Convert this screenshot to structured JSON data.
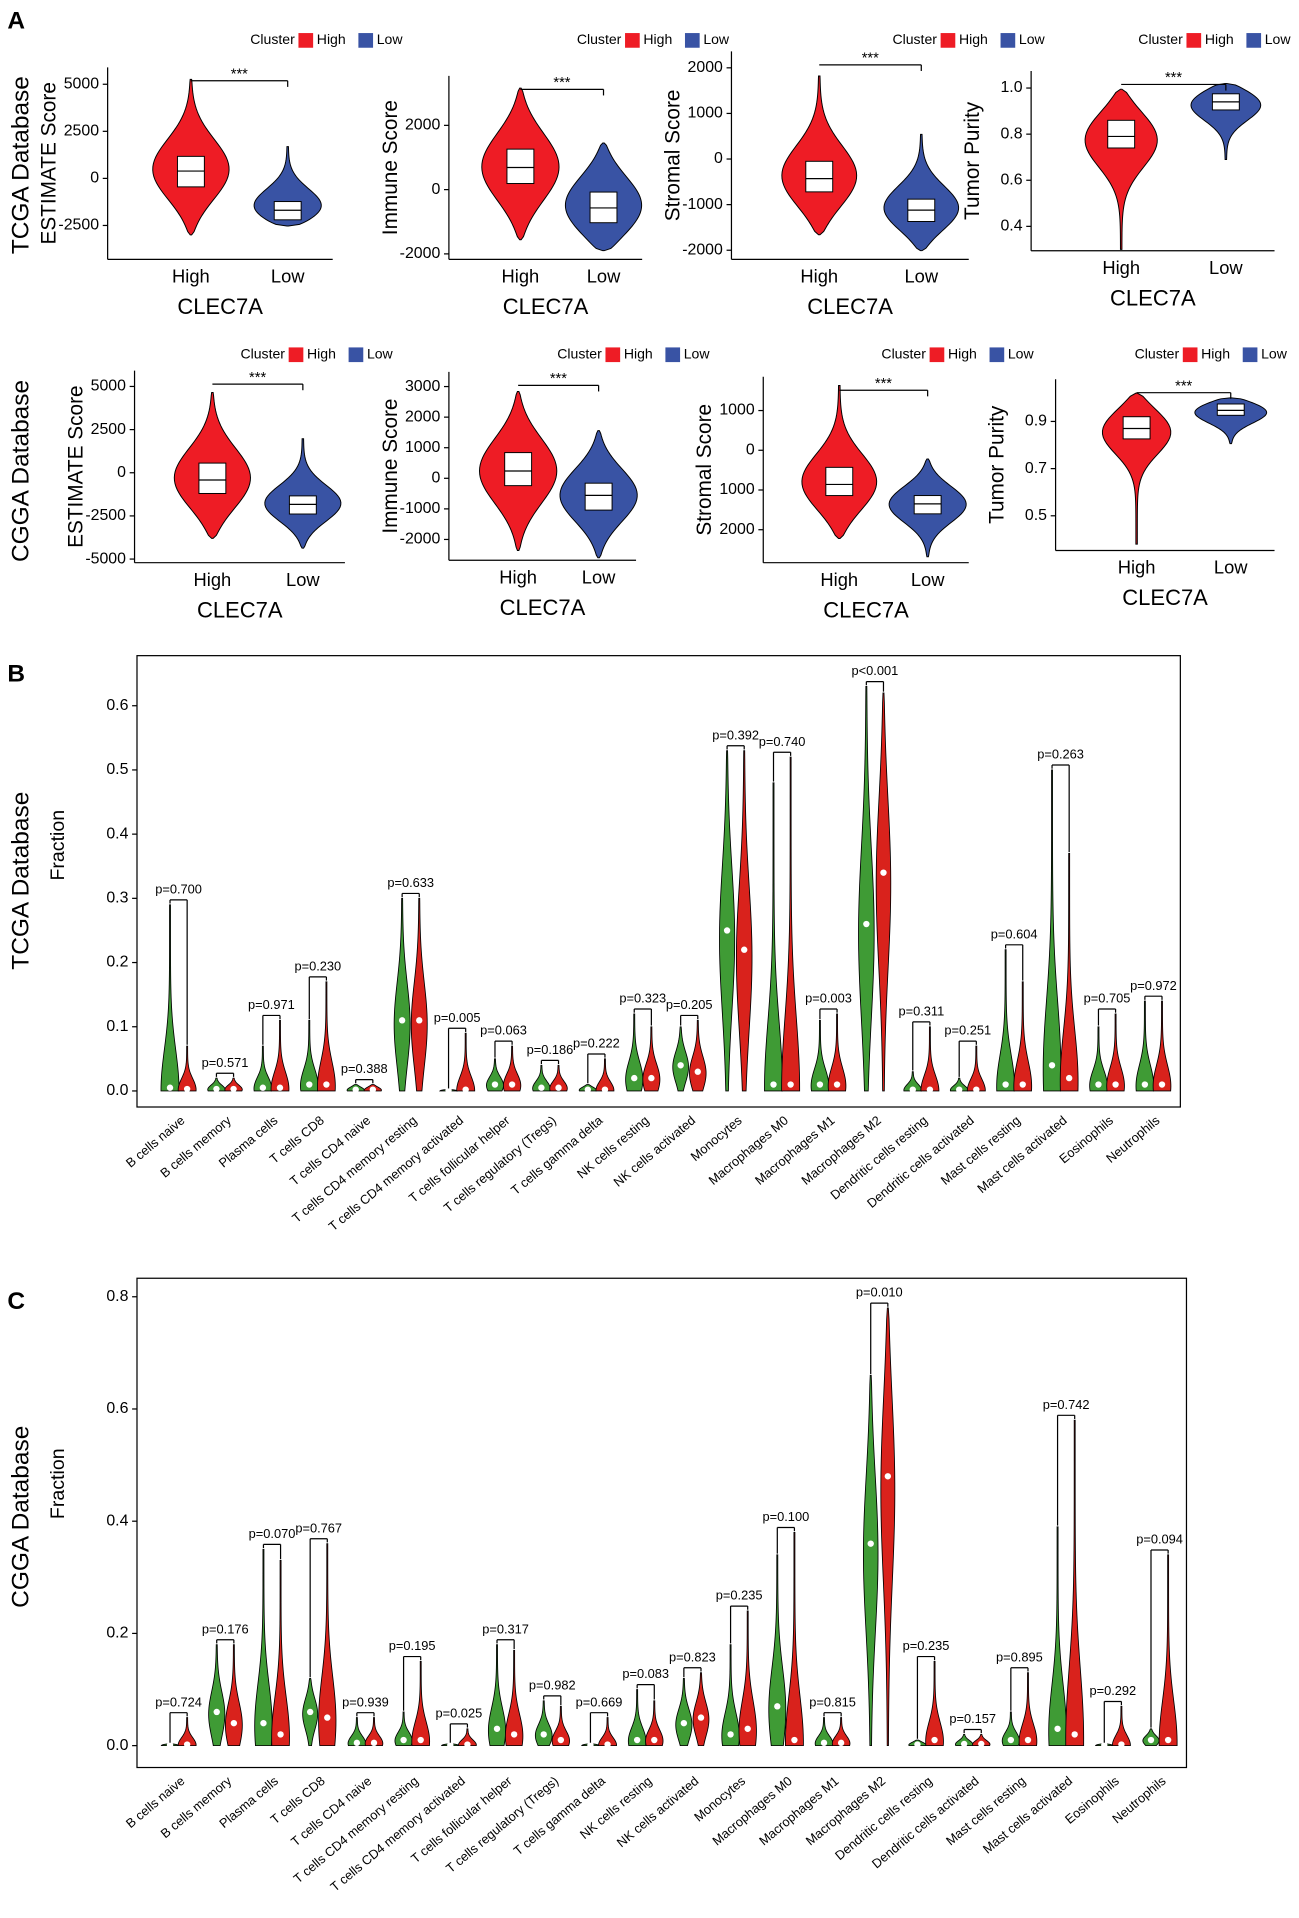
{
  "panel_labels": [
    "A",
    "B",
    "C"
  ],
  "row_labels": [
    "TCGA Database",
    "CGGA Database",
    "TCGA Database",
    "CGGA Database"
  ],
  "chart_data": [
    {
      "type": "violin",
      "legend_title": "Cluster",
      "annotation": "***",
      "xlabel": "CLEC7A",
      "ylabel": "ESTIMATE Score",
      "ylim": [
        -4300,
        5900
      ],
      "yticks": [
        5000,
        2500,
        0,
        -2500
      ],
      "series": [
        {
          "name": "High",
          "color": "#ee1c25",
          "min": -3000,
          "q1": -450,
          "median": 390,
          "q3": 1170,
          "max": 5260
        },
        {
          "name": "Low",
          "color": "#3953a4",
          "min": -2530,
          "q1": -2200,
          "median": -1690,
          "q3": -1230,
          "max": 1690
        }
      ]
    },
    {
      "type": "violin",
      "legend_title": "Cluster",
      "annotation": "***",
      "xlabel": "CLEC7A",
      "ylabel": "Immune Score",
      "ylim": [
        -2170,
        3540
      ],
      "yticks": [
        2000,
        0,
        -2000
      ],
      "series": [
        {
          "name": "High",
          "color": "#ee1c25",
          "min": -1560,
          "q1": 190,
          "median": 690,
          "q3": 1260,
          "max": 3160
        },
        {
          "name": "Low",
          "color": "#3953a4",
          "min": -1900,
          "q1": -1030,
          "median": -570,
          "q3": -76,
          "max": 1450
        }
      ]
    },
    {
      "type": "violin",
      "legend_title": "Cluster",
      "annotation": "***",
      "xlabel": "CLEC7A",
      "ylabel": "Stromal Score",
      "ylim": [
        -2200,
        2360
      ],
      "yticks": [
        2000,
        1000,
        0,
        -1000,
        -2000
      ],
      "series": [
        {
          "name": "High",
          "color": "#ee1c25",
          "min": -1660,
          "q1": -720,
          "median": -430,
          "q3": -50,
          "max": 1820
        },
        {
          "name": "Low",
          "color": "#3953a4",
          "min": -2010,
          "q1": -1370,
          "median": -1120,
          "q3": -880,
          "max": 540
        }
      ]
    },
    {
      "type": "violin",
      "legend_title": "Cluster",
      "annotation": "***",
      "xlabel": "CLEC7A",
      "ylabel": "Tumor Purity",
      "ylim": [
        0.294,
        1.074
      ],
      "yticks": [
        {
          "value": 1.0,
          "label": "1.0"
        },
        0.8,
        0.6,
        0.4
      ],
      "series": [
        {
          "name": "High",
          "color": "#ee1c25",
          "min": 0.3,
          "q1": 0.74,
          "median": 0.79,
          "q3": 0.86,
          "max": 0.995
        },
        {
          "name": "Low",
          "color": "#3953a4",
          "min": 0.69,
          "q1": 0.905,
          "median": 0.94,
          "q3": 0.975,
          "max": 1.02
        }
      ]
    },
    {
      "type": "violin",
      "legend_title": "Cluster",
      "annotation": "***",
      "xlabel": "CLEC7A",
      "ylabel": "ESTIMATE Score",
      "ylim": [
        -5210,
        5915
      ],
      "yticks": [
        5000,
        2500,
        0,
        -2500,
        -5000
      ],
      "series": [
        {
          "name": "High",
          "color": "#ee1c25",
          "min": -3800,
          "q1": -1200,
          "median": -420,
          "q3": 560,
          "max": 4650
        },
        {
          "name": "Low",
          "color": "#3953a4",
          "min": -4370,
          "q1": -2390,
          "median": -1830,
          "q3": -1340,
          "max": 1970
        }
      ]
    },
    {
      "type": "violin",
      "legend_title": "Cluster",
      "annotation": "***",
      "xlabel": "CLEC7A",
      "ylabel": "Immune Score",
      "ylim": [
        -2680,
        3480
      ],
      "yticks": [
        3000,
        2000,
        1000,
        0,
        -1000,
        -2000
      ],
      "series": [
        {
          "name": "High",
          "color": "#ee1c25",
          "min": -2360,
          "q1": -240,
          "median": 240,
          "q3": 840,
          "max": 2840
        },
        {
          "name": "Low",
          "color": "#3953a4",
          "min": -2600,
          "q1": -1040,
          "median": -560,
          "q3": -160,
          "max": 1560
        }
      ]
    },
    {
      "type": "violin",
      "legend_title": "Cluster",
      "annotation": "***",
      "xlabel": "CLEC7A",
      "ylabel": "Stromal Score",
      "ylim": [
        -2830,
        1850
      ],
      "yticks": [
        1000,
        0,
        {
          "value": -1000,
          "label": "1000"
        },
        {
          "value": -2000,
          "label": "2000"
        }
      ],
      "series": [
        {
          "name": "High",
          "color": "#ee1c25",
          "min": -2220,
          "q1": -1140,
          "median": -860,
          "q3": -430,
          "max": 1630
        },
        {
          "name": "Low",
          "color": "#3953a4",
          "min": -2680,
          "q1": -1600,
          "median": -1350,
          "q3": -1140,
          "max": -220
        }
      ]
    },
    {
      "type": "violin",
      "legend_title": "Cluster",
      "annotation": "***",
      "xlabel": "CLEC7A",
      "ylabel": "Tumor Purity",
      "ylim": [
        0.353,
        1.079
      ],
      "yticks": [
        0.9,
        0.7,
        0.5
      ],
      "series": [
        {
          "name": "High",
          "color": "#ee1c25",
          "min": 0.38,
          "q1": 0.826,
          "median": 0.87,
          "q3": 0.92,
          "max": 1.02
        },
        {
          "name": "Low",
          "color": "#3953a4",
          "min": 0.806,
          "q1": 0.926,
          "median": 0.947,
          "q3": 0.974,
          "max": 1.0
        }
      ]
    },
    {
      "type": "split_violin",
      "ylabel": "Fraction",
      "highlight_color": "#e8231f",
      "ylim": [
        -0.025,
        0.678
      ],
      "yticks": [
        {
          "value": 0,
          "label": "0.0"
        },
        0.1,
        0.2,
        0.3,
        0.4,
        0.5,
        0.6
      ],
      "categories": [
        "B cells naive",
        "B cells memory",
        "Plasma cells",
        "T cells CD8",
        "T cells CD4 naive",
        "T cells CD4 memory resting",
        "T cells CD4 memory activated",
        "T cells follicular helper",
        "T cells regulatory (Tregs)",
        "T cells gamma delta",
        "NK cells resting",
        "NK cells activated",
        "Monocytes",
        "Macrophages M0",
        "Macrophages M1",
        "Macrophages M2",
        "Dendritic cells resting",
        "Dendritic cells activated",
        "Mast cells resting",
        "Mast cells activated",
        "Eosinophils",
        "Neutrophils"
      ],
      "p_labels": [
        "p=0.700",
        "p=0.571",
        "p=0.971",
        "p=0.230",
        "p=0.388",
        "p=0.633",
        "p=0.005",
        "p=0.063",
        "p=0.186",
        "p=0.222",
        "p=0.323",
        "p=0.205",
        "p=0.392",
        "p=0.740",
        "p=0.003",
        "p<0.001",
        "p=0.311",
        "p=0.251",
        "p=0.604",
        "p=0.263",
        "p=0.705",
        "p=0.972"
      ],
      "significant": [
        false,
        false,
        false,
        false,
        false,
        false,
        true,
        false,
        false,
        false,
        false,
        false,
        false,
        false,
        true,
        true,
        false,
        false,
        false,
        false,
        false,
        false
      ],
      "series": [
        {
          "color": "#3f9b35",
          "max": [
            0.29,
            0.02,
            0.07,
            0.11,
            0.01,
            0.3,
            0.002,
            0.05,
            0.04,
            0.01,
            0.12,
            0.1,
            0.53,
            0.48,
            0.11,
            0.63,
            0.03,
            0.02,
            0.22,
            0.5,
            0.1,
            0.14
          ],
          "median": [
            0.005,
            0.003,
            0.005,
            0.01,
            0.002,
            0.11,
            0.001,
            0.01,
            0.005,
            0.002,
            0.02,
            0.04,
            0.25,
            0.01,
            0.01,
            0.26,
            0.002,
            0.002,
            0.01,
            0.04,
            0.01,
            0.01
          ]
        },
        {
          "color": "#d9221c",
          "max": [
            0.07,
            0.02,
            0.11,
            0.17,
            0.01,
            0.3,
            0.09,
            0.07,
            0.04,
            0.05,
            0.1,
            0.11,
            0.53,
            0.52,
            0.12,
            0.62,
            0.1,
            0.07,
            0.17,
            0.37,
            0.12,
            0.14
          ],
          "median": [
            0.003,
            0.003,
            0.005,
            0.01,
            0.002,
            0.11,
            0.002,
            0.01,
            0.005,
            0.002,
            0.02,
            0.03,
            0.22,
            0.01,
            0.01,
            0.34,
            0.002,
            0.002,
            0.01,
            0.02,
            0.01,
            0.01
          ]
        }
      ]
    },
    {
      "type": "split_violin",
      "ylabel": "Fraction",
      "highlight_color": "#e8231f",
      "ylim": [
        -0.039,
        0.833
      ],
      "yticks": [
        {
          "value": 0,
          "label": "0.0"
        },
        0.2,
        0.4,
        0.6,
        0.8
      ],
      "categories": [
        "B cells naive",
        "B cells memory",
        "Plasma cells",
        "T cells CD8",
        "T cells CD4 naive",
        "T cells CD4 memory resting",
        "T cells CD4 memory activated",
        "T cells follicular helper",
        "T cells regulatory (Tregs)",
        "T cells gamma delta",
        "NK cells resting",
        "NK cells activated",
        "Monocytes",
        "Macrophages M0",
        "Macrophages M1",
        "Macrophages M2",
        "Dendritic cells resting",
        "Dendritic cells activated",
        "Mast cells resting",
        "Mast cells activated",
        "Eosinophils",
        "Neutrophils"
      ],
      "p_labels": [
        "p=0.724",
        "p=0.176",
        "p=0.070",
        "p=0.767",
        "p=0.939",
        "p=0.195",
        "p=0.025",
        "p=0.317",
        "p=0.982",
        "p=0.669",
        "p=0.083",
        "p=0.823",
        "p=0.235",
        "p=0.100",
        "p=0.815",
        "p=0.010",
        "p=0.235",
        "p=0.157",
        "p=0.895",
        "p=0.742",
        "p=0.292",
        "p=0.094"
      ],
      "significant": [
        false,
        false,
        false,
        false,
        false,
        false,
        true,
        false,
        false,
        false,
        false,
        false,
        false,
        false,
        false,
        true,
        false,
        false,
        false,
        false,
        false,
        false
      ],
      "series": [
        {
          "color": "#3f9b35",
          "max": [
            0.003,
            0.18,
            0.35,
            0.12,
            0.05,
            0.06,
            0.003,
            0.18,
            0.08,
            0.003,
            0.1,
            0.12,
            0.18,
            0.34,
            0.05,
            0.66,
            0.01,
            0.02,
            0.06,
            0.39,
            0.003,
            0.03
          ],
          "median": [
            0.001,
            0.06,
            0.04,
            0.06,
            0.005,
            0.01,
            0.001,
            0.03,
            0.02,
            0.001,
            0.01,
            0.04,
            0.02,
            0.07,
            0.005,
            0.36,
            0.002,
            0.003,
            0.01,
            0.03,
            0.001,
            0.01
          ]
        },
        {
          "color": "#d9221c",
          "max": [
            0.05,
            0.18,
            0.33,
            0.36,
            0.05,
            0.15,
            0.03,
            0.17,
            0.07,
            0.05,
            0.08,
            0.13,
            0.24,
            0.38,
            0.05,
            0.78,
            0.15,
            0.02,
            0.13,
            0.58,
            0.07,
            0.34
          ],
          "median": [
            0.002,
            0.04,
            0.02,
            0.05,
            0.005,
            0.01,
            0.002,
            0.02,
            0.01,
            0.002,
            0.01,
            0.05,
            0.03,
            0.01,
            0.005,
            0.48,
            0.01,
            0.003,
            0.01,
            0.02,
            0.002,
            0.01
          ]
        }
      ]
    }
  ]
}
